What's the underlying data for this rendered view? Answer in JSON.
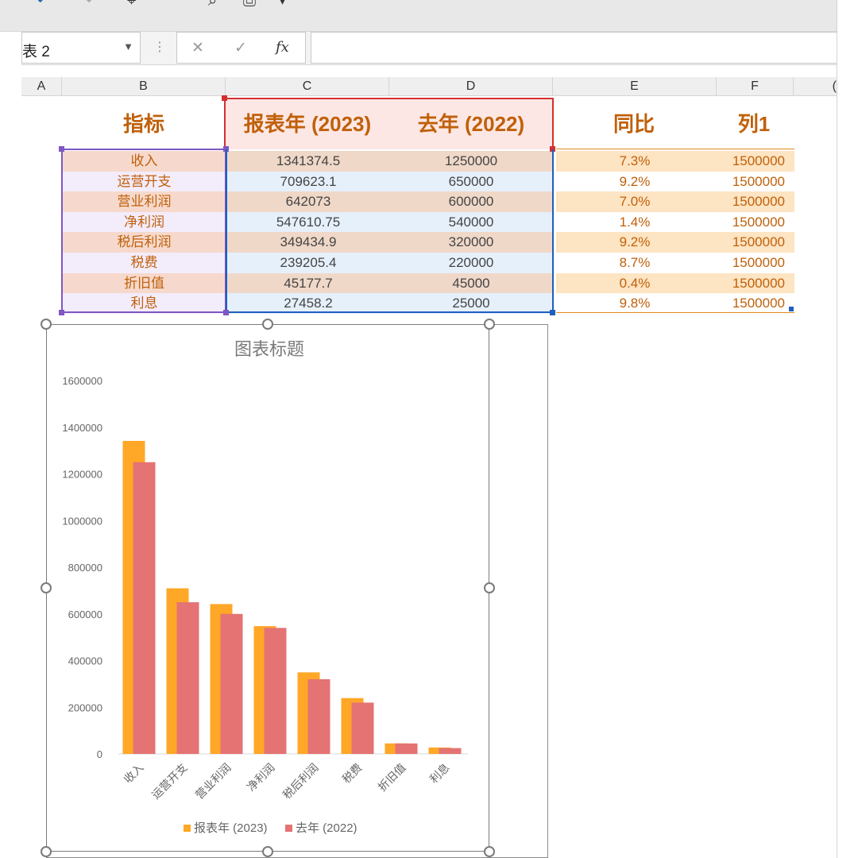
{
  "toolbar": {
    "icons": [
      "undo-icon",
      "redo-icon",
      "format-painter-icon",
      "fill-color-icon",
      "print-preview-icon",
      "print-icon",
      "customize-icon"
    ]
  },
  "formula_bar": {
    "name_box": "表 2",
    "dots": "⋮",
    "cancel": "✕",
    "enter": "✓",
    "fx": "fx",
    "formula": ""
  },
  "columns": [
    "A",
    "B",
    "C",
    "D",
    "E",
    "F",
    "("
  ],
  "table": {
    "headers": [
      "指标",
      "报表年 (2023)",
      "去年 (2022)",
      "同比",
      "列1"
    ],
    "rows": [
      {
        "name": "收入",
        "y2023": "1341374.5",
        "y2022": "1250000",
        "yoy": "7.3%",
        "col1": "1500000"
      },
      {
        "name": "运营开支",
        "y2023": "709623.1",
        "y2022": "650000",
        "yoy": "9.2%",
        "col1": "1500000"
      },
      {
        "name": "营业利润",
        "y2023": "642073",
        "y2022": "600000",
        "yoy": "7.0%",
        "col1": "1500000"
      },
      {
        "name": "净利润",
        "y2023": "547610.75",
        "y2022": "540000",
        "yoy": "1.4%",
        "col1": "1500000"
      },
      {
        "name": "税后利润",
        "y2023": "349434.9",
        "y2022": "320000",
        "yoy": "9.2%",
        "col1": "1500000"
      },
      {
        "name": "税费",
        "y2023": "239205.4",
        "y2022": "220000",
        "yoy": "8.7%",
        "col1": "1500000"
      },
      {
        "name": "折旧值",
        "y2023": "45177.7",
        "y2022": "45000",
        "yoy": "0.4%",
        "col1": "1500000"
      },
      {
        "name": "利息",
        "y2023": "27458.2",
        "y2022": "25000",
        "yoy": "9.8%",
        "col1": "1500000"
      }
    ]
  },
  "colors": {
    "accent_text": "#c0600a",
    "series_2023": "#ffa726",
    "series_2022": "#e57373",
    "sel_purple": "#7e57c2",
    "sel_red": "#d32f2f",
    "sel_blue": "#1e5fbf",
    "sel_orange": "#e08a1e"
  },
  "chart_data": {
    "type": "bar",
    "title": "图表标题",
    "categories": [
      "收入",
      "运营开支",
      "营业利润",
      "净利润",
      "税后利润",
      "税费",
      "折旧值",
      "利息"
    ],
    "series": [
      {
        "name": "报表年 (2023)",
        "values": [
          1341374.5,
          709623.1,
          642073,
          547610.75,
          349434.9,
          239205.4,
          45177.7,
          27458.2
        ]
      },
      {
        "name": "去年 (2022)",
        "values": [
          1250000,
          650000,
          600000,
          540000,
          320000,
          220000,
          45000,
          25000
        ]
      }
    ],
    "yticks": [
      0,
      200000,
      400000,
      600000,
      800000,
      1000000,
      1200000,
      1400000,
      1600000
    ],
    "ylim": [
      0,
      1600000
    ],
    "grid": false,
    "legend": "bottom"
  }
}
